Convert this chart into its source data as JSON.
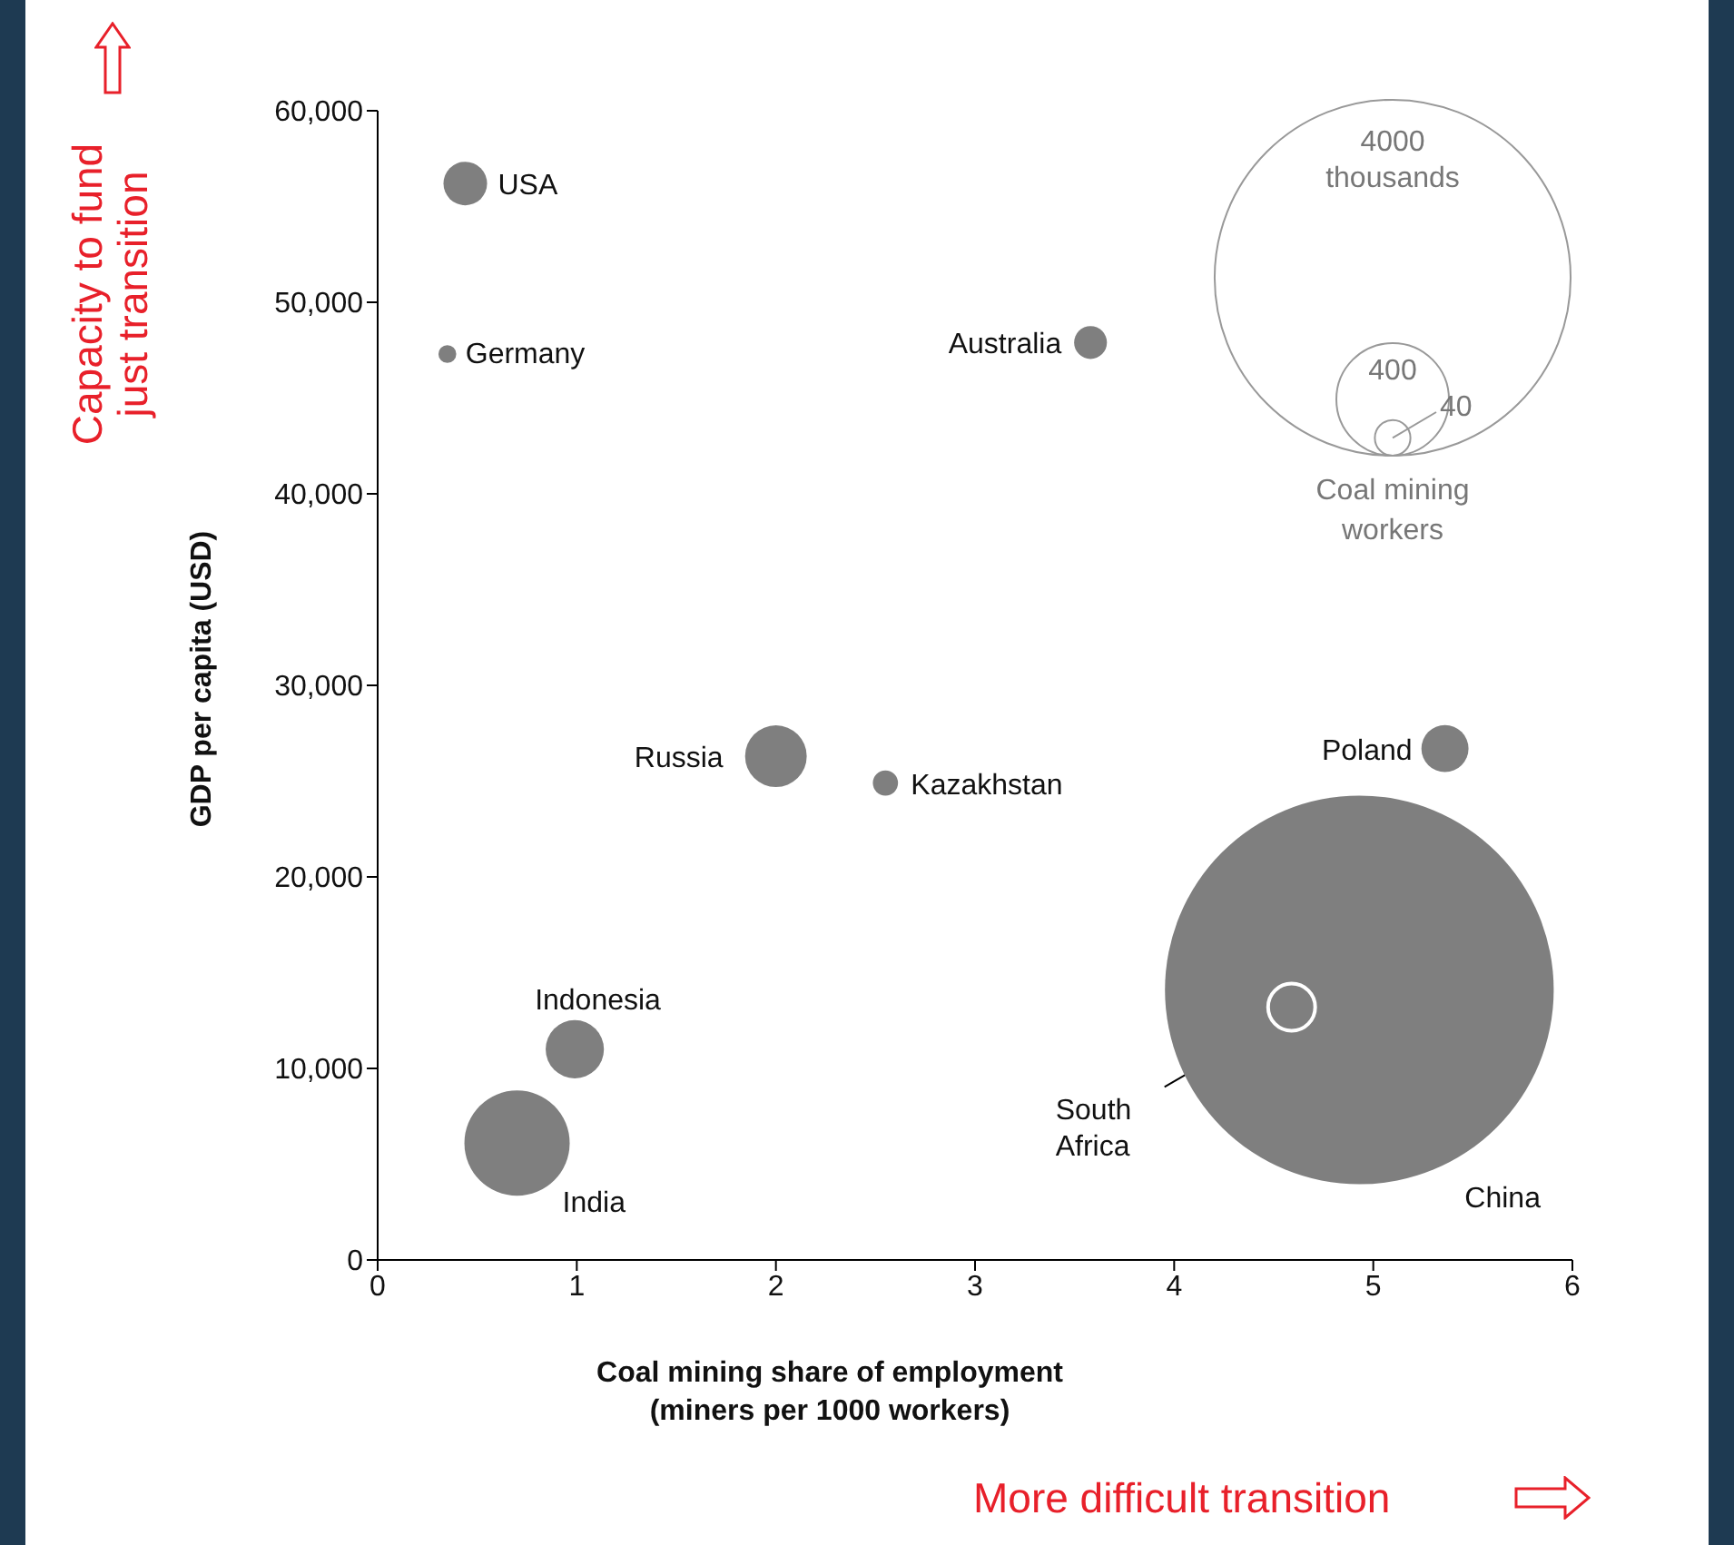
{
  "chart_data": {
    "type": "bubble",
    "xlabel": "Coal mining share of employment\n(miners per 1000 workers)",
    "ylabel": "GDP per capita (USD)",
    "xlim": [
      0,
      6
    ],
    "xticks": [
      0,
      1,
      2,
      3,
      4,
      5,
      6
    ],
    "ylim": [
      0,
      60000
    ],
    "yticks": [
      0,
      {
        "value": 10000,
        "label": "10,000"
      },
      {
        "value": 20000,
        "label": "20,000"
      },
      {
        "value": 30000,
        "label": "30,000"
      },
      {
        "value": 40000,
        "label": "40,000"
      },
      {
        "value": 50000,
        "label": "50,000"
      },
      {
        "value": 60000,
        "label": "60,000"
      }
    ],
    "size_legend": [
      40,
      400,
      4000
    ],
    "grid": false,
    "legend": false,
    "series": [
      {
        "name": "USA",
        "color": "#7f7f7f",
        "x": [
          0.44
        ],
        "values": [
          56200
        ],
        "sizes": [
          60
        ]
      },
      {
        "name": "Germany",
        "color": "#7f7f7f",
        "x": [
          0.35
        ],
        "values": [
          47300
        ],
        "sizes": [
          10
        ]
      },
      {
        "name": "Australia",
        "color": "#7f7f7f",
        "x": [
          3.58
        ],
        "values": [
          47900
        ],
        "sizes": [
          34
        ]
      },
      {
        "name": "Russia",
        "color": "#7f7f7f",
        "x": [
          2.0
        ],
        "values": [
          26300
        ],
        "sizes": [
          120
        ]
      },
      {
        "name": "Kazakhstan",
        "color": "#7f7f7f",
        "x": [
          2.55
        ],
        "values": [
          24900
        ],
        "sizes": [
          20
        ]
      },
      {
        "name": "Poland",
        "color": "#7f7f7f",
        "x": [
          5.36
        ],
        "values": [
          26700
        ],
        "sizes": [
          70
        ]
      },
      {
        "name": "Indonesia",
        "color": "#7f7f7f",
        "x": [
          0.99
        ],
        "values": [
          11000
        ],
        "sizes": [
          107
        ]
      },
      {
        "name": "India",
        "color": "#7f7f7f",
        "x": [
          0.7
        ],
        "values": [
          6100
        ],
        "sizes": [
          350
        ]
      },
      {
        "name": "China",
        "color": "#7f7f7f",
        "x": [
          4.93
        ],
        "values": [
          14100
        ],
        "sizes": [
          4770
        ]
      },
      {
        "name": "South Africa",
        "color": "#7f7f7f",
        "x": [
          4.59
        ],
        "values": [
          13200
        ],
        "sizes": [
          70
        ]
      }
    ],
    "annotations": [
      "thousands",
      "Coal mining workers",
      "Capacity to fund just transition",
      "More difficult transition"
    ]
  }
}
